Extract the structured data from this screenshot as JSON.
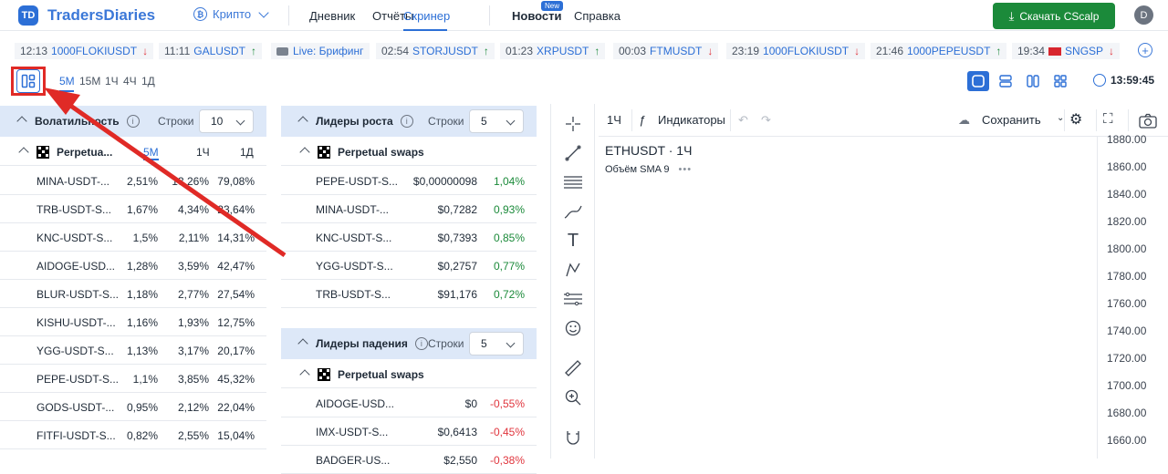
{
  "brand": {
    "mark": "TD",
    "name": "TradersDiaries"
  },
  "nav": {
    "crypto": "Крипто",
    "diary": "Дневник",
    "reports": "Отчёты",
    "screener": "Скринер",
    "news": "Новости",
    "news_badge": "New",
    "help": "Справка"
  },
  "cta": {
    "label": "Скачать CScalp"
  },
  "avatar": "D",
  "ticker": [
    {
      "time": "12:13",
      "symbol": "1000FLOKIUSDT",
      "dir": "down"
    },
    {
      "time": "11:11",
      "symbol": "GALUSDT",
      "dir": "up"
    },
    {
      "time": "",
      "symbol": "Live: Брифинг",
      "dir": "live"
    },
    {
      "time": "02:54",
      "symbol": "STORJUSDT",
      "dir": "up"
    },
    {
      "time": "01:23",
      "symbol": "XRPUSDT",
      "dir": "up"
    },
    {
      "time": "00:03",
      "symbol": "FTMUSDT",
      "dir": "down"
    },
    {
      "time": "23:19",
      "symbol": "1000FLOKIUSDT",
      "dir": "down"
    },
    {
      "time": "21:46",
      "symbol": "1000PEPEUSDT",
      "dir": "up"
    },
    {
      "time": "19:34",
      "symbol": "SNGSP",
      "dir": "down"
    }
  ],
  "timeframes": [
    "5M",
    "15M",
    "1Ч",
    "4Ч",
    "1Д"
  ],
  "clock": "13:59:45",
  "volatility": {
    "title": "Волатильность",
    "rows_label": "Строки",
    "rows_value": "10",
    "exchange": "Perpetua...",
    "cols": [
      "5M",
      "1Ч",
      "1Д"
    ],
    "rows": [
      {
        "s": "MINA-USDT-...",
        "a": "2,51%",
        "b": "13,26%",
        "c": "79,08%"
      },
      {
        "s": "TRB-USDT-S...",
        "a": "1,67%",
        "b": "4,34%",
        "c": "23,64%"
      },
      {
        "s": "KNC-USDT-S...",
        "a": "1,5%",
        "b": "2,11%",
        "c": "14,31%"
      },
      {
        "s": "AIDOGE-USD...",
        "a": "1,28%",
        "b": "3,59%",
        "c": "42,47%"
      },
      {
        "s": "BLUR-USDT-S...",
        "a": "1,18%",
        "b": "2,77%",
        "c": "27,54%"
      },
      {
        "s": "KISHU-USDT-...",
        "a": "1,16%",
        "b": "1,93%",
        "c": "12,75%"
      },
      {
        "s": "YGG-USDT-S...",
        "a": "1,13%",
        "b": "3,17%",
        "c": "20,17%"
      },
      {
        "s": "PEPE-USDT-S...",
        "a": "1,1%",
        "b": "3,85%",
        "c": "45,32%"
      },
      {
        "s": "GODS-USDT-...",
        "a": "0,95%",
        "b": "2,12%",
        "c": "22,04%"
      },
      {
        "s": "FITFI-USDT-S...",
        "a": "0,82%",
        "b": "2,55%",
        "c": "15,04%"
      }
    ]
  },
  "gainers": {
    "title": "Лидеры роста",
    "rows_label": "Строки",
    "rows_value": "5",
    "exchange": "Perpetual swaps",
    "rows": [
      {
        "s": "PEPE-USDT-S...",
        "p": "$0,00000098",
        "c": "1,04%"
      },
      {
        "s": "MINA-USDT-...",
        "p": "$0,7282",
        "c": "0,93%"
      },
      {
        "s": "KNC-USDT-S...",
        "p": "$0,7393",
        "c": "0,85%"
      },
      {
        "s": "YGG-USDT-S...",
        "p": "$0,2757",
        "c": "0,77%"
      },
      {
        "s": "TRB-USDT-S...",
        "p": "$91,176",
        "c": "0,72%"
      }
    ]
  },
  "losers": {
    "title": "Лидеры падения",
    "rows_label": "Строки",
    "rows_value": "5",
    "exchange": "Perpetual swaps",
    "rows": [
      {
        "s": "AIDOGE-USD...",
        "p": "$0",
        "c": "-0,55%"
      },
      {
        "s": "IMX-USDT-S...",
        "p": "$0,6413",
        "c": "-0,45%"
      },
      {
        "s": "BADGER-US...",
        "p": "$2,550",
        "c": "-0,38%"
      }
    ]
  },
  "chart": {
    "interval": "1Ч",
    "indicators": "Индикаторы",
    "save": "Сохранить",
    "symbol": "ETHUSDT · 1Ч",
    "study": "Объём SMA 9",
    "price_axis": [
      "1880.00",
      "1860.00",
      "1840.00",
      "1820.00",
      "1800.00",
      "1780.00",
      "1760.00",
      "1740.00",
      "1720.00",
      "1700.00",
      "1680.00",
      "1660.00"
    ]
  },
  "colors": {
    "accent": "#2c6fd6",
    "positive": "#1b8a3a",
    "negative": "#e0353d",
    "header_bg": "#dde8f8",
    "highlight": "#e02a26"
  }
}
